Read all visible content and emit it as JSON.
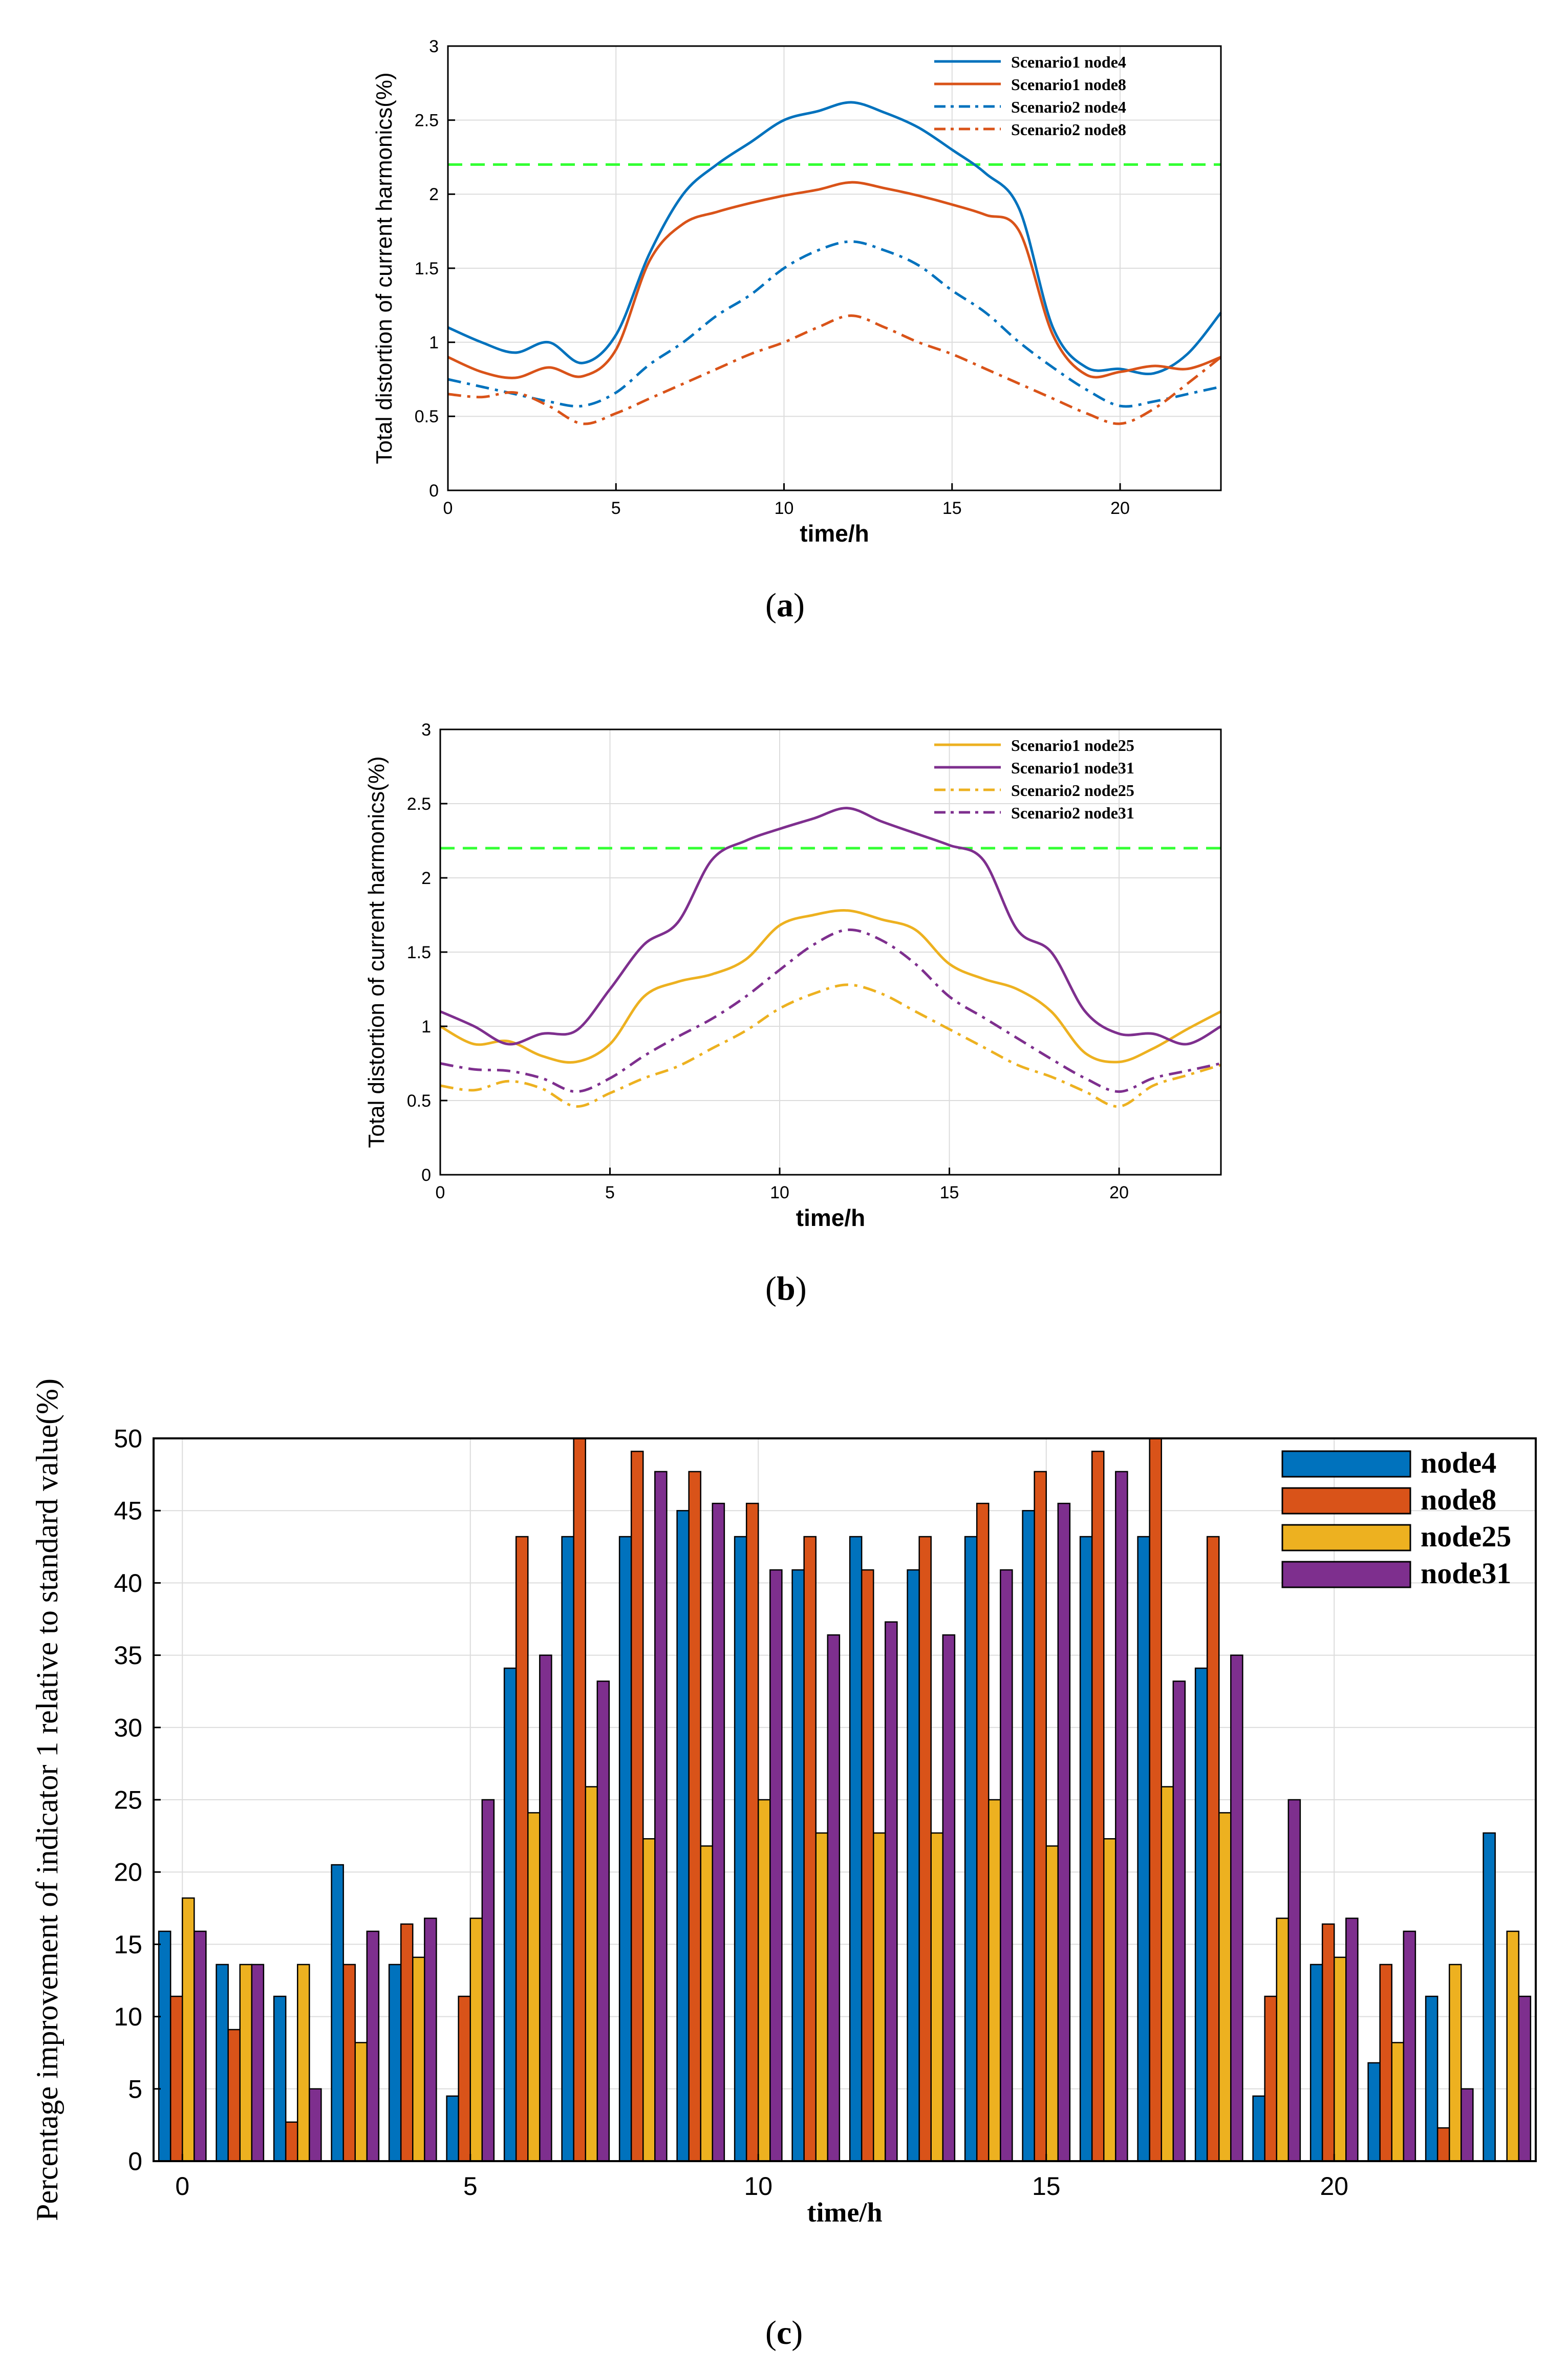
{
  "colors": {
    "node4": "#0072BD",
    "node8": "#D95319",
    "node25": "#EDB120",
    "node31": "#7E2F8E",
    "limit": "#33FF33",
    "grid": "#dcdcdc",
    "axis": "#000000"
  },
  "captions": {
    "a": "a",
    "b": "b",
    "c": "c"
  },
  "chart_data": [
    {
      "id": "a",
      "type": "line",
      "title": "",
      "xlabel": "time/h",
      "ylabel": "Total distortion of current harmonics(%)",
      "xlim": [
        0,
        23
      ],
      "ylim": [
        0,
        3
      ],
      "xticks": [
        0,
        5,
        10,
        15,
        20
      ],
      "yticks": [
        0,
        0.5,
        1,
        1.5,
        2,
        2.5,
        3
      ],
      "ytick_labels": [
        "0",
        "0.5",
        "1",
        "1.5",
        "2",
        "2.5",
        "3"
      ],
      "grid": true,
      "legend_position": "top-right",
      "reference_line": {
        "y": 2.2,
        "style": "dashed"
      },
      "x": [
        0,
        1,
        2,
        3,
        4,
        5,
        6,
        7,
        8,
        9,
        10,
        11,
        12,
        13,
        14,
        15,
        16,
        17,
        18,
        19,
        20,
        21,
        22,
        23
      ],
      "series": [
        {
          "name": "Scenario1 node4",
          "color_key": "node4",
          "style": "solid",
          "values": [
            1.1,
            1.0,
            0.93,
            1.0,
            0.86,
            1.05,
            1.6,
            2.0,
            2.2,
            2.35,
            2.5,
            2.56,
            2.62,
            2.55,
            2.45,
            2.3,
            2.14,
            1.9,
            1.1,
            0.83,
            0.82,
            0.79,
            0.92,
            1.2
          ]
        },
        {
          "name": "Scenario1 node8",
          "color_key": "node8",
          "style": "solid",
          "values": [
            0.9,
            0.8,
            0.76,
            0.83,
            0.77,
            0.95,
            1.55,
            1.8,
            1.88,
            1.94,
            1.99,
            2.03,
            2.08,
            2.04,
            1.99,
            1.93,
            1.86,
            1.75,
            1.05,
            0.78,
            0.8,
            0.84,
            0.82,
            0.9
          ]
        },
        {
          "name": "Scenario2 node4",
          "color_key": "node4",
          "style": "dashdot",
          "values": [
            0.75,
            0.7,
            0.65,
            0.6,
            0.57,
            0.66,
            0.85,
            1.0,
            1.18,
            1.32,
            1.5,
            1.62,
            1.68,
            1.62,
            1.52,
            1.35,
            1.2,
            1.0,
            0.83,
            0.68,
            0.57,
            0.6,
            0.65,
            0.7
          ]
        },
        {
          "name": "Scenario2 node8",
          "color_key": "node8",
          "style": "dashdot",
          "values": [
            0.65,
            0.63,
            0.66,
            0.57,
            0.45,
            0.52,
            0.62,
            0.72,
            0.82,
            0.92,
            1.0,
            1.1,
            1.18,
            1.1,
            1.0,
            0.92,
            0.82,
            0.72,
            0.62,
            0.52,
            0.45,
            0.55,
            0.72,
            0.9
          ]
        }
      ]
    },
    {
      "id": "b",
      "type": "line",
      "title": "",
      "xlabel": "time/h",
      "ylabel": "Total distortion of current harmonics(%)",
      "xlim": [
        0,
        23
      ],
      "ylim": [
        0,
        3
      ],
      "xticks": [
        0,
        5,
        10,
        15,
        20
      ],
      "yticks": [
        0,
        0.5,
        1,
        1.5,
        2,
        2.5,
        3
      ],
      "ytick_labels": [
        "0",
        "0.5",
        "1",
        "1.5",
        "2",
        "2.5",
        "3"
      ],
      "grid": true,
      "legend_position": "top-right",
      "reference_line": {
        "y": 2.2,
        "style": "dashed"
      },
      "x": [
        0,
        1,
        2,
        3,
        4,
        5,
        6,
        7,
        8,
        9,
        10,
        11,
        12,
        13,
        14,
        15,
        16,
        17,
        18,
        19,
        20,
        21,
        22,
        23
      ],
      "series": [
        {
          "name": "Scenario1 node25",
          "color_key": "node25",
          "style": "solid",
          "values": [
            1.0,
            0.88,
            0.9,
            0.8,
            0.76,
            0.88,
            1.2,
            1.3,
            1.35,
            1.45,
            1.68,
            1.75,
            1.78,
            1.72,
            1.65,
            1.42,
            1.32,
            1.25,
            1.1,
            0.82,
            0.76,
            0.85,
            0.98,
            1.1
          ]
        },
        {
          "name": "Scenario1 node31",
          "color_key": "node31",
          "style": "solid",
          "values": [
            1.1,
            1.0,
            0.88,
            0.95,
            0.97,
            1.25,
            1.55,
            1.7,
            2.12,
            2.25,
            2.33,
            2.4,
            2.47,
            2.38,
            2.3,
            2.22,
            2.12,
            1.65,
            1.5,
            1.1,
            0.95,
            0.95,
            0.88,
            1.0
          ]
        },
        {
          "name": "Scenario2 node25",
          "color_key": "node25",
          "style": "dashdot",
          "values": [
            0.6,
            0.57,
            0.63,
            0.58,
            0.46,
            0.55,
            0.65,
            0.73,
            0.85,
            0.97,
            1.12,
            1.22,
            1.28,
            1.22,
            1.1,
            0.98,
            0.86,
            0.74,
            0.66,
            0.56,
            0.46,
            0.6,
            0.67,
            0.74
          ]
        },
        {
          "name": "Scenario2 node31",
          "color_key": "node31",
          "style": "dashdot",
          "values": [
            0.75,
            0.71,
            0.7,
            0.65,
            0.56,
            0.65,
            0.8,
            0.93,
            1.05,
            1.2,
            1.38,
            1.55,
            1.65,
            1.58,
            1.42,
            1.2,
            1.06,
            0.92,
            0.78,
            0.65,
            0.56,
            0.65,
            0.7,
            0.75
          ]
        }
      ]
    },
    {
      "id": "c",
      "type": "bar",
      "title": "",
      "xlabel": "time/h",
      "ylabel": "Percentage improvement of indicator 1 relative to standard value(%)",
      "xlim": [
        -0.5,
        23.5
      ],
      "ylim": [
        0,
        50
      ],
      "xticks": [
        0,
        5,
        10,
        15,
        20
      ],
      "yticks": [
        0,
        5,
        10,
        15,
        20,
        25,
        30,
        35,
        40,
        45,
        50
      ],
      "grid": true,
      "legend_position": "top-right",
      "categories": [
        0,
        1,
        2,
        3,
        4,
        5,
        6,
        7,
        8,
        9,
        10,
        11,
        12,
        13,
        14,
        15,
        16,
        17,
        18,
        19,
        20,
        21,
        22,
        23
      ],
      "series": [
        {
          "name": "node4",
          "color_key": "node4",
          "values": [
            15.9,
            13.6,
            11.4,
            20.5,
            13.6,
            4.5,
            34.1,
            43.2,
            43.2,
            45.0,
            43.2,
            40.9,
            43.2,
            40.9,
            43.2,
            45.0,
            43.2,
            43.2,
            34.1,
            4.5,
            13.6,
            6.8,
            11.4,
            22.7
          ]
        },
        {
          "name": "node8",
          "color_key": "node8",
          "values": [
            11.4,
            9.1,
            2.7,
            13.6,
            16.4,
            11.4,
            43.2,
            50.0,
            49.1,
            47.7,
            45.5,
            43.2,
            40.9,
            43.2,
            45.5,
            47.7,
            49.1,
            50.0,
            43.2,
            11.4,
            16.4,
            13.6,
            2.3,
            0
          ]
        },
        {
          "name": "node25",
          "color_key": "node25",
          "values": [
            18.2,
            13.6,
            13.6,
            8.2,
            14.1,
            16.8,
            24.1,
            25.9,
            22.3,
            21.8,
            25.0,
            22.7,
            22.7,
            22.7,
            25.0,
            21.8,
            22.3,
            25.9,
            24.1,
            16.8,
            14.1,
            8.2,
            13.6,
            15.9
          ]
        },
        {
          "name": "node31",
          "color_key": "node31",
          "values": [
            15.9,
            13.6,
            5.0,
            15.9,
            16.8,
            25.0,
            35.0,
            33.2,
            47.7,
            45.5,
            40.9,
            36.4,
            37.3,
            36.4,
            40.9,
            45.5,
            47.7,
            33.2,
            35.0,
            25.0,
            16.8,
            15.9,
            5.0,
            11.4
          ]
        }
      ]
    }
  ]
}
